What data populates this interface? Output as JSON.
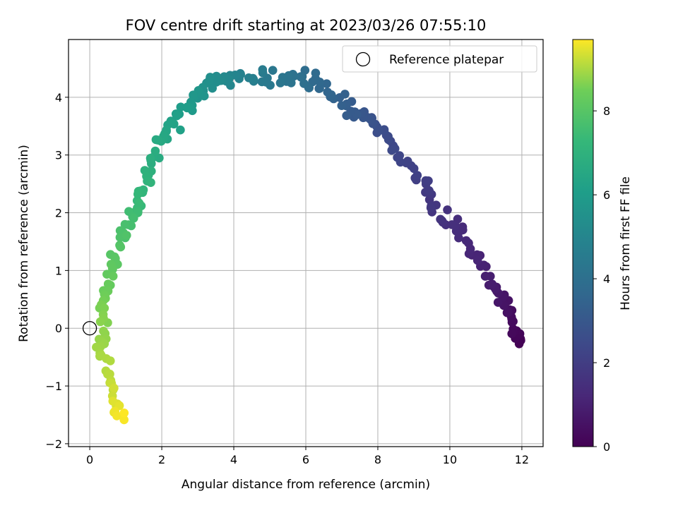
{
  "chart_data": {
    "type": "scatter",
    "title": "FOV centre drift starting at 2023/03/26 07:55:10",
    "xlabel": "Angular distance from reference (arcmin)",
    "ylabel": "Rotation from reference (arcmin)",
    "xlim": [
      -0.59,
      12.59
    ],
    "ylim": [
      -2.05,
      5.0
    ],
    "xticks": [
      0,
      2,
      4,
      6,
      8,
      10,
      12
    ],
    "yticks": [
      -2,
      -1,
      0,
      1,
      2,
      3,
      4
    ],
    "grid": true,
    "legend": {
      "label": "Reference platepar",
      "placement": "top-right"
    },
    "reference_point": {
      "x": 0,
      "y": 0
    },
    "colorbar": {
      "label": "Hours from first FF file",
      "colormap": "viridis",
      "range": [
        0,
        9.7
      ],
      "ticks": [
        0,
        2,
        4,
        6,
        8
      ]
    },
    "anchors": [
      {
        "x": 11.95,
        "y": -0.3,
        "h": 0.0
      },
      {
        "x": 11.75,
        "y": 0.1,
        "h": 0.3
      },
      {
        "x": 11.5,
        "y": 0.5,
        "h": 0.6
      },
      {
        "x": 11.0,
        "y": 0.9,
        "h": 0.95
      },
      {
        "x": 10.4,
        "y": 1.6,
        "h": 1.3
      },
      {
        "x": 9.7,
        "y": 2.0,
        "h": 1.65
      },
      {
        "x": 9.3,
        "y": 2.5,
        "h": 2.0
      },
      {
        "x": 8.5,
        "y": 3.1,
        "h": 2.35
      },
      {
        "x": 8.0,
        "y": 3.45,
        "h": 2.7
      },
      {
        "x": 7.3,
        "y": 3.75,
        "h": 3.1
      },
      {
        "x": 6.7,
        "y": 4.1,
        "h": 3.5
      },
      {
        "x": 6.0,
        "y": 4.4,
        "h": 3.9
      },
      {
        "x": 5.2,
        "y": 4.35,
        "h": 4.3
      },
      {
        "x": 4.2,
        "y": 4.35,
        "h": 4.8
      },
      {
        "x": 3.5,
        "y": 4.3,
        "h": 5.3
      },
      {
        "x": 2.9,
        "y": 4.0,
        "h": 5.75
      },
      {
        "x": 2.4,
        "y": 3.6,
        "h": 6.2
      },
      {
        "x": 1.9,
        "y": 3.2,
        "h": 6.6
      },
      {
        "x": 1.6,
        "y": 2.6,
        "h": 7.0
      },
      {
        "x": 1.3,
        "y": 2.1,
        "h": 7.4
      },
      {
        "x": 0.9,
        "y": 1.6,
        "h": 7.8
      },
      {
        "x": 0.6,
        "y": 1.0,
        "h": 8.2
      },
      {
        "x": 0.4,
        "y": 0.3,
        "h": 8.6
      },
      {
        "x": 0.3,
        "y": -0.3,
        "h": 8.9
      },
      {
        "x": 0.6,
        "y": -1.0,
        "h": 9.2
      },
      {
        "x": 0.9,
        "y": -1.6,
        "h": 9.7
      }
    ],
    "point_count": 300,
    "noise": 0.12
  }
}
